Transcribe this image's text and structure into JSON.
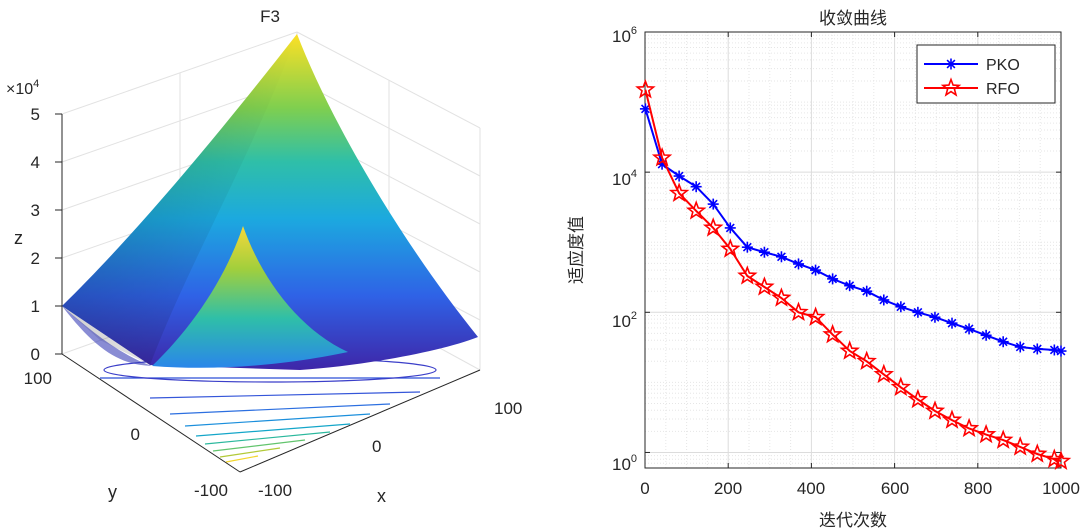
{
  "chart_data": [
    {
      "type": "surface3d",
      "title": "F3",
      "xlabel": "x",
      "ylabel": "y",
      "zlabel": "z",
      "z_multiplier": "×10",
      "z_multiplier_exp": "4",
      "x_ticks": [
        "-100",
        "0",
        "100"
      ],
      "y_ticks": [
        "-100",
        "0",
        "100"
      ],
      "z_ticks": [
        "0",
        "1",
        "2",
        "3",
        "4",
        "5"
      ],
      "xlim": [
        -100,
        100
      ],
      "ylim": [
        -100,
        100
      ],
      "zlim": [
        0,
        50000
      ],
      "colormap": [
        "#3e26a8",
        "#1ca9df",
        "#7fcf4f",
        "#fde025"
      ]
    },
    {
      "type": "line",
      "title": "收敛曲线",
      "xlabel": "迭代次数",
      "ylabel": "适应度值",
      "yscale": "log",
      "xlim": [
        0,
        1000
      ],
      "ylim": [
        0.6,
        1000000
      ],
      "x_ticks": [
        "0",
        "200",
        "400",
        "600",
        "800",
        "1000"
      ],
      "y_ticks": [
        {
          "base": "10",
          "exp": "0"
        },
        {
          "base": "10",
          "exp": "2"
        },
        {
          "base": "10",
          "exp": "4"
        },
        {
          "base": "10",
          "exp": "6"
        }
      ],
      "legend_position": "top-right",
      "series": [
        {
          "name": "PKO",
          "color": "#0000ff",
          "marker": "asterisk",
          "x": [
            1,
            41,
            82,
            123,
            164,
            205,
            246,
            287,
            328,
            369,
            410,
            451,
            492,
            533,
            574,
            615,
            656,
            697,
            738,
            779,
            820,
            861,
            902,
            943,
            984,
            1000
          ],
          "y": [
            80000,
            13000,
            8800,
            6200,
            3500,
            1600,
            850,
            720,
            620,
            490,
            400,
            300,
            240,
            200,
            150,
            120,
            100,
            85,
            70,
            58,
            47,
            38,
            32,
            30,
            29,
            28
          ]
        },
        {
          "name": "RFO",
          "color": "#ff0000",
          "marker": "pentagram",
          "x": [
            1,
            41,
            82,
            123,
            164,
            205,
            246,
            287,
            328,
            369,
            410,
            451,
            492,
            533,
            574,
            615,
            656,
            697,
            738,
            779,
            820,
            861,
            902,
            943,
            984,
            1000
          ],
          "y": [
            150000,
            16000,
            5000,
            2800,
            1600,
            800,
            330,
            230,
            160,
            100,
            85,
            48,
            28,
            20,
            13,
            8.5,
            5.7,
            3.9,
            2.9,
            2.2,
            1.8,
            1.5,
            1.2,
            0.95,
            0.8,
            0.75
          ]
        }
      ]
    }
  ]
}
